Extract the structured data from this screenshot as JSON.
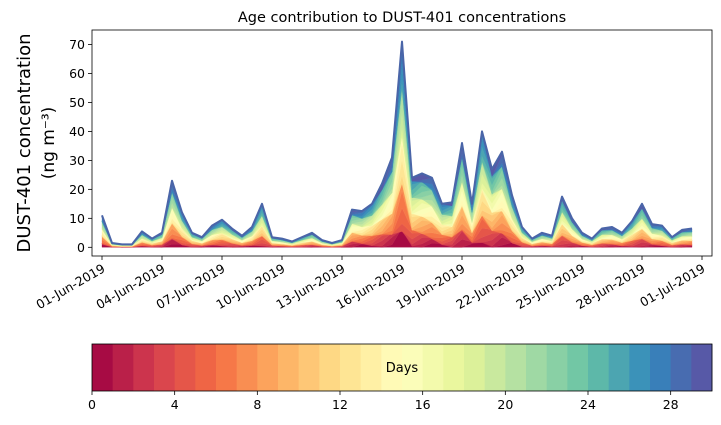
{
  "chart_data": {
    "type": "area",
    "stacked": true,
    "title": "Age contribution to DUST-401 concentrations",
    "ylabel_main": "DUST-401 concentration",
    "ylabel_unit": "(ng m⁻³)",
    "xlabel": "",
    "ylim": [
      -3,
      75
    ],
    "yticks": [
      0,
      10,
      20,
      30,
      40,
      50,
      60,
      70
    ],
    "x_days": [
      0,
      1,
      2,
      3,
      4,
      5,
      6,
      7,
      8,
      9,
      10,
      11,
      12,
      13,
      14,
      15,
      16,
      17,
      18,
      19,
      20,
      21,
      22,
      23,
      24,
      25,
      26,
      27,
      28,
      29,
      30,
      31,
      32,
      33,
      34,
      35,
      36,
      37,
      38,
      39,
      40,
      41,
      42,
      43,
      44,
      45,
      46,
      47,
      48,
      49,
      50,
      51,
      52,
      53,
      54,
      55,
      56,
      57,
      58,
      59
    ],
    "xlim_days": [
      -1,
      61
    ],
    "xtick_days": [
      0,
      6,
      12,
      18,
      24,
      30,
      36,
      42,
      48,
      54,
      60
    ],
    "xtick_labels": [
      "01-Jun-2019",
      "04-Jun-2019",
      "07-Jun-2019",
      "10-Jun-2019",
      "13-Jun-2019",
      "16-Jun-2019",
      "19-Jun-2019",
      "22-Jun-2019",
      "25-Jun-2019",
      "28-Jun-2019",
      "01-Jul-2019"
    ],
    "total": [
      11,
      1.5,
      1,
      1,
      5.5,
      3,
      5,
      23,
      12,
      5,
      3.5,
      7.5,
      9.5,
      6.5,
      4,
      7,
      15,
      3.5,
      3,
      2,
      3.5,
      5,
      2.5,
      1.5,
      2.5,
      13,
      12.5,
      15,
      22,
      31,
      71,
      24,
      25.5,
      24,
      15,
      15.5,
      36,
      15,
      40,
      27,
      33,
      18,
      7,
      3,
      5,
      4,
      17.5,
      10,
      5,
      3,
      6.5,
      7,
      5,
      9,
      15,
      8,
      7.5,
      3.5,
      6,
      6.5
    ],
    "age_days_min": 0,
    "age_days_max": 30,
    "colorbar": {
      "label": "Days",
      "min": 0,
      "max": 30,
      "ticks": [
        0,
        4,
        8,
        12,
        16,
        20,
        24,
        28
      ],
      "tick_labels": [
        "0",
        "4",
        "8",
        "12",
        "16",
        "20",
        "24",
        "28"
      ],
      "n_bins": 30,
      "colormap": "Spectral"
    },
    "line_color": "#4a65a8",
    "colormap_stops": [
      "#9e0142",
      "#d53e4f",
      "#f46d43",
      "#fdae61",
      "#fee08b",
      "#ffffbf",
      "#e6f598",
      "#abdda4",
      "#66c2a5",
      "#3288bd",
      "#5e4fa2"
    ]
  }
}
